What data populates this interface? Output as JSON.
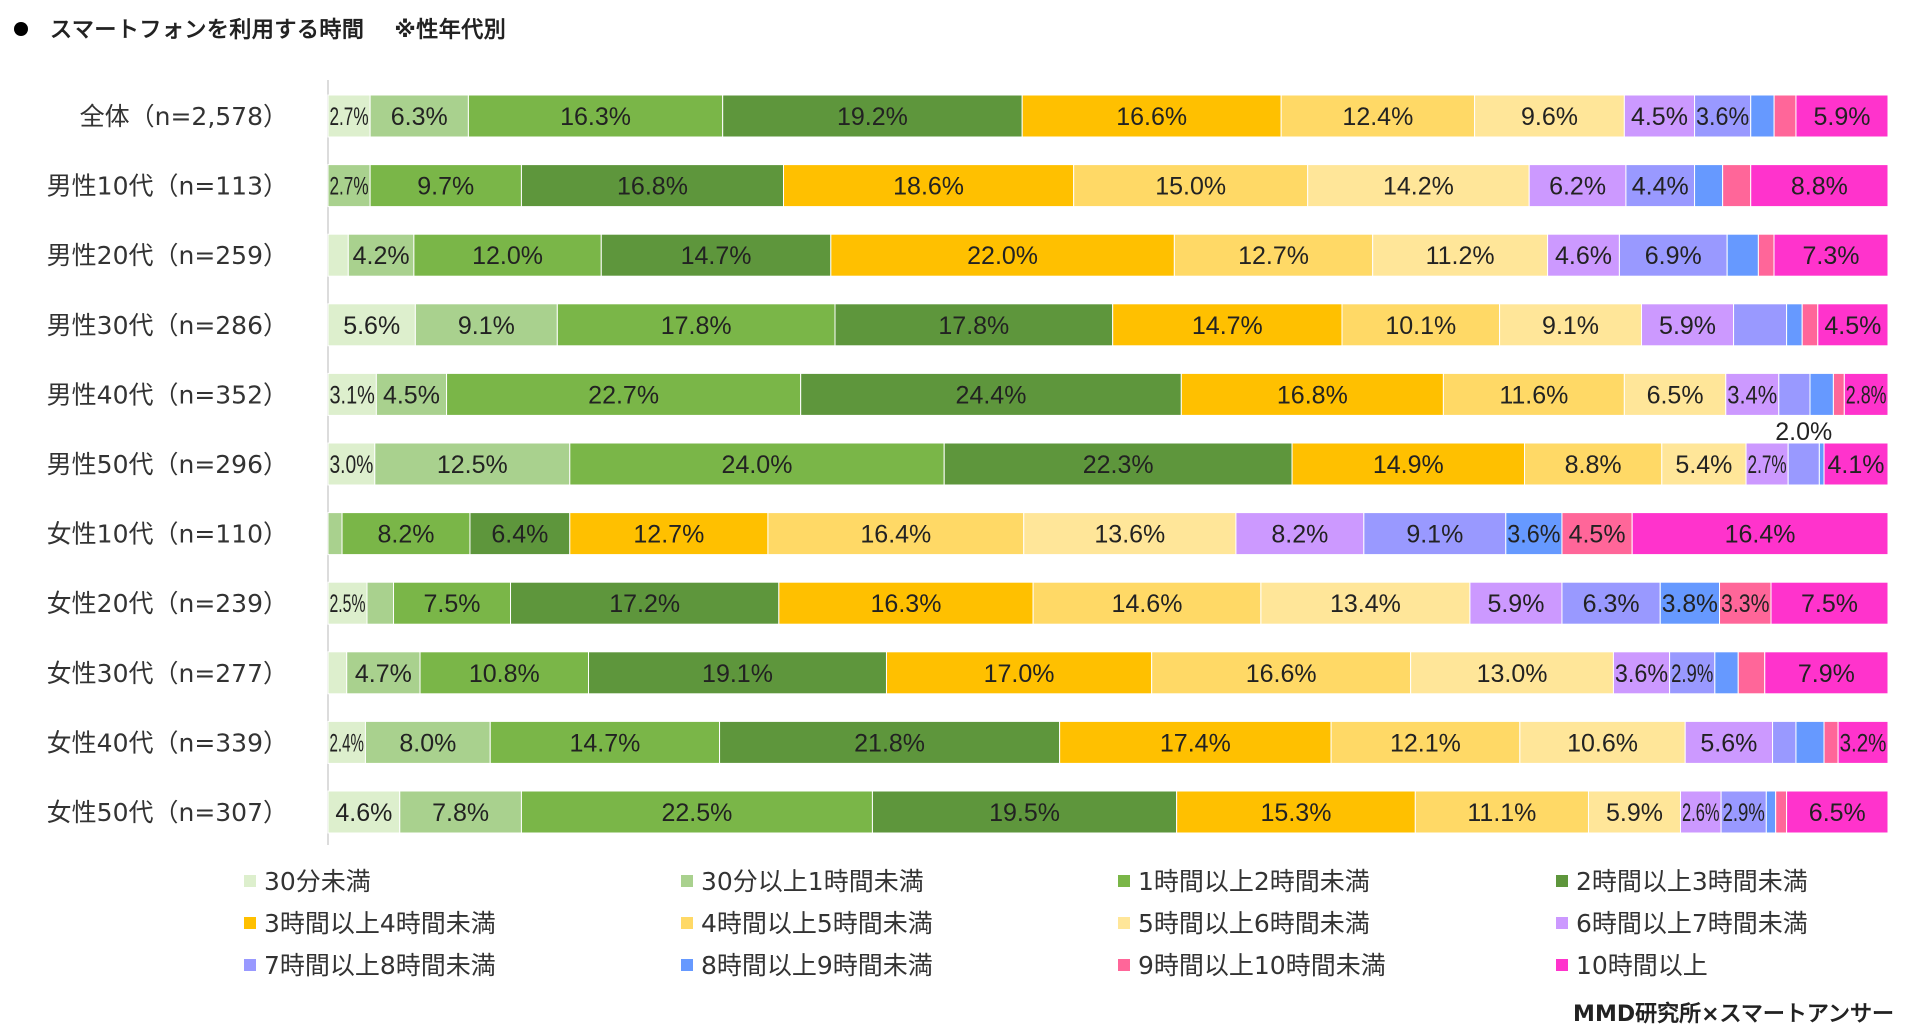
{
  "title": {
    "main": "スマートフォンを利用する時間",
    "note": "※性年代別"
  },
  "credit": "MMD研究所×スマートアンサー",
  "chart_data": {
    "type": "bar",
    "orientation": "horizontal",
    "stacked": true,
    "percent": true,
    "xlim": [
      0,
      100
    ],
    "categories": [
      "全体（n=2,578）",
      "男性10代（n=113）",
      "男性20代（n=259）",
      "男性30代（n=286）",
      "男性40代（n=352）",
      "男性50代（n=296）",
      "女性10代（n=110）",
      "女性20代（n=239）",
      "女性30代（n=277）",
      "女性40代（n=339）",
      "女性50代（n=307）"
    ],
    "legend_position": "bottom",
    "series": [
      {
        "name": "30分未満",
        "color": "#DDEFCD",
        "values": [
          2.7,
          0,
          1.3,
          5.6,
          3.1,
          3.0,
          0,
          2.5,
          1.2,
          2.4,
          4.6
        ],
        "labels": [
          "2.7%",
          null,
          null,
          "5.6%",
          "3.1%",
          "3.0%",
          null,
          "2.5%",
          null,
          "2.4%",
          "4.6%"
        ]
      },
      {
        "name": "30分以上1時間未満",
        "color": "#A9D18E",
        "values": [
          6.3,
          2.7,
          4.2,
          9.1,
          4.5,
          12.5,
          0.9,
          1.7,
          4.7,
          8.0,
          7.8
        ],
        "labels": [
          "6.3%",
          "2.7%",
          "4.2%",
          "9.1%",
          "4.5%",
          "12.5%",
          null,
          null,
          "4.7%",
          "8.0%",
          "7.8%"
        ]
      },
      {
        "name": "1時間以上2時間未満",
        "color": "#7AB648",
        "values": [
          16.3,
          9.7,
          12.0,
          17.8,
          22.7,
          24.0,
          8.2,
          7.5,
          10.8,
          14.7,
          22.5
        ],
        "labels": [
          "16.3%",
          "9.7%",
          "12.0%",
          "17.8%",
          "22.7%",
          "24.0%",
          "8.2%",
          "7.5%",
          "10.8%",
          "14.7%",
          "22.5%"
        ]
      },
      {
        "name": "2時間以上3時間未満",
        "color": "#5E963C",
        "values": [
          19.2,
          16.8,
          14.7,
          17.8,
          24.4,
          22.3,
          6.4,
          17.2,
          19.1,
          21.8,
          19.5
        ],
        "labels": [
          "19.2%",
          "16.8%",
          "14.7%",
          "17.8%",
          "24.4%",
          "22.3%",
          "6.4%",
          "17.2%",
          "19.1%",
          "21.8%",
          "19.5%"
        ]
      },
      {
        "name": "3時間以上4時間未満",
        "color": "#FFC000",
        "values": [
          16.6,
          18.6,
          22.0,
          14.7,
          16.8,
          14.9,
          12.7,
          16.3,
          17.0,
          17.4,
          15.3
        ],
        "labels": [
          "16.6%",
          "18.6%",
          "22.0%",
          "14.7%",
          "16.8%",
          "14.9%",
          "12.7%",
          "16.3%",
          "17.0%",
          "17.4%",
          "15.3%"
        ]
      },
      {
        "name": "4時間以上5時間未満",
        "color": "#FFD966",
        "values": [
          12.4,
          15.0,
          12.7,
          10.1,
          11.6,
          8.8,
          16.4,
          14.6,
          16.6,
          12.1,
          11.1
        ],
        "labels": [
          "12.4%",
          "15.0%",
          "12.7%",
          "10.1%",
          "11.6%",
          "8.8%",
          "16.4%",
          "14.6%",
          "16.6%",
          "12.1%",
          "11.1%"
        ]
      },
      {
        "name": "5時間以上6時間未満",
        "color": "#FFE699",
        "values": [
          9.6,
          14.2,
          11.2,
          9.1,
          6.5,
          5.4,
          13.6,
          13.4,
          13.0,
          10.6,
          5.9
        ],
        "labels": [
          "9.6%",
          "14.2%",
          "11.2%",
          "9.1%",
          "6.5%",
          "5.4%",
          "13.6%",
          "13.4%",
          "13.0%",
          "10.6%",
          "5.9%"
        ]
      },
      {
        "name": "6時間以上7時間未満",
        "color": "#CC99FF",
        "values": [
          4.5,
          6.2,
          4.6,
          5.9,
          3.4,
          2.7,
          8.2,
          5.9,
          3.6,
          5.6,
          2.6
        ],
        "labels": [
          "4.5%",
          "6.2%",
          "4.6%",
          "5.9%",
          "3.4%",
          "2.7%",
          "8.2%",
          "5.9%",
          "3.6%",
          "5.6%",
          "2.6%"
        ]
      },
      {
        "name": "7時間以上8時間未満",
        "color": "#9999FF",
        "values": [
          3.6,
          4.4,
          6.9,
          3.4,
          2.0,
          2.0,
          9.1,
          6.3,
          2.9,
          1.5,
          2.9
        ],
        "labels": [
          "3.6%",
          "4.4%",
          "6.9%",
          null,
          null,
          "2.0%",
          "9.1%",
          "6.3%",
          "2.9%",
          null,
          "2.9%"
        ]
      },
      {
        "name": "8時間以上9時間未満",
        "color": "#6699FF",
        "values": [
          1.5,
          1.8,
          2.0,
          1.0,
          1.5,
          0.3,
          3.6,
          3.8,
          1.5,
          1.8,
          0.6
        ],
        "labels": [
          null,
          null,
          null,
          null,
          null,
          null,
          "3.6%",
          "3.8%",
          null,
          null,
          null
        ]
      },
      {
        "name": "9時間以上10時間未満",
        "color": "#FF6699",
        "values": [
          1.4,
          1.8,
          1.0,
          1.0,
          0.7,
          0,
          4.5,
          3.3,
          1.7,
          0.9,
          0.7
        ],
        "labels": [
          null,
          null,
          null,
          null,
          null,
          null,
          "4.5%",
          "3.3%",
          null,
          null,
          null
        ]
      },
      {
        "name": "10時間以上",
        "color": "#FF33CC",
        "values": [
          5.9,
          8.8,
          7.3,
          4.5,
          2.8,
          4.1,
          16.4,
          7.5,
          7.9,
          3.2,
          6.5
        ],
        "labels": [
          "5.9%",
          "8.8%",
          "7.3%",
          "4.5%",
          "2.8%",
          "4.1%",
          "16.4%",
          "7.5%",
          "7.9%",
          "3.2%",
          "6.5%"
        ]
      }
    ]
  }
}
